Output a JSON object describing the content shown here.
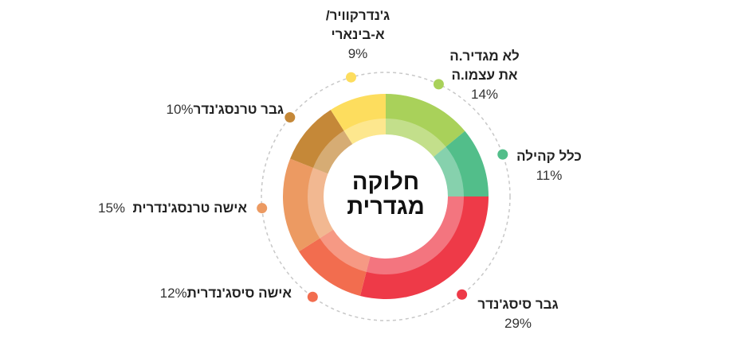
{
  "chart_data": {
    "type": "pie",
    "title": "חלוקה מגדרית",
    "title_lines": [
      "חלוקה",
      "מגדרית"
    ],
    "slices": [
      {
        "label": "לא מגדיר.ה את עצמו.ה",
        "lines": [
          "לא מגדיר.ה",
          "את עצמו.ה"
        ],
        "value": 14,
        "value_label": "14%",
        "color": "#a9d15a"
      },
      {
        "label": "כלל קהילה",
        "lines": [
          "כלל קהילה"
        ],
        "value": 11,
        "value_label": "11%",
        "color": "#52be8a"
      },
      {
        "label": "גבר סיסג'נדר",
        "lines": [
          "גבר סיסג'נדר"
        ],
        "value": 29,
        "value_label": "29%",
        "color": "#ee3a48"
      },
      {
        "label": "אישה סיסג'נדרית",
        "lines": [
          "אישה סיסג'נדרית"
        ],
        "value": 12,
        "value_label": "12%",
        "color": "#f26d4f"
      },
      {
        "label": "אישה טרנסג'נדרית",
        "lines": [
          "אישה טרנסג'נדרית"
        ],
        "value": 15,
        "value_label": "15%",
        "color": "#ec9a62"
      },
      {
        "label": "גבר טרנסג'נדר",
        "lines": [
          "גבר טרנסג'נדר"
        ],
        "value": 10,
        "value_label": "10%",
        "color": "#c58838"
      },
      {
        "label": "ג'נדרקוויר/א-בינארי",
        "lines": [
          "ג'נדרקוויר/",
          "א-בינארי"
        ],
        "value": 9,
        "value_label": "9%",
        "color": "#fddd5e"
      }
    ],
    "donut": true,
    "start": "top",
    "direction": "clockwise"
  }
}
